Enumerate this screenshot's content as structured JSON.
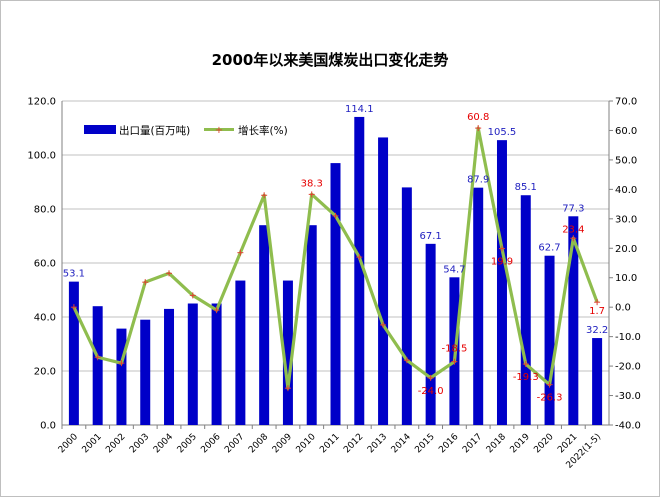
{
  "colors": {
    "bar": "#0000c8",
    "line": "#8fbd4e",
    "marker": "#e04030",
    "value_label": "#1f1fbf",
    "growth_label": "#e60000",
    "grid": "#c0c0c0"
  },
  "chart_data": {
    "type": "bar+line",
    "title": "2000年以来美国煤炭出口变化走势",
    "categories": [
      "2000",
      "2001",
      "2002",
      "2003",
      "2004",
      "2005",
      "2006",
      "2007",
      "2008",
      "2009",
      "2010",
      "2011",
      "2012",
      "2013",
      "2014",
      "2015",
      "2016",
      "2017",
      "2018",
      "2019",
      "2020",
      "2021",
      "2022(1-5)"
    ],
    "series": [
      {
        "name": "出口量(百万吨)",
        "type": "bar",
        "axis": "left",
        "values": [
          53.1,
          44.0,
          35.7,
          39.0,
          43.0,
          45.0,
          45.0,
          53.5,
          74.0,
          53.5,
          74.0,
          97.0,
          114.1,
          106.5,
          88.0,
          67.1,
          54.7,
          87.9,
          105.5,
          85.1,
          62.7,
          77.3,
          32.2
        ]
      },
      {
        "name": "增长率(%)",
        "type": "line",
        "axis": "right",
        "values": [
          0.0,
          -17.0,
          -19.0,
          8.5,
          11.5,
          4.0,
          -1.0,
          18.5,
          38.0,
          -27.5,
          38.3,
          31.0,
          17.0,
          -6.0,
          -18.0,
          -24.0,
          -18.5,
          60.8,
          19.9,
          -19.3,
          -26.3,
          23.4,
          1.7
        ]
      }
    ],
    "value_labels": [
      {
        "index": 0,
        "text": "53.1"
      },
      {
        "index": 12,
        "text": "114.1"
      },
      {
        "index": 15,
        "text": "67.1"
      },
      {
        "index": 16,
        "text": "54.7"
      },
      {
        "index": 17,
        "text": "87.9"
      },
      {
        "index": 18,
        "text": "105.5"
      },
      {
        "index": 19,
        "text": "85.1"
      },
      {
        "index": 20,
        "text": "62.7"
      },
      {
        "index": 21,
        "text": "77.3"
      },
      {
        "index": 22,
        "text": "32.2"
      }
    ],
    "growth_labels": [
      {
        "index": 10,
        "text": "38.3"
      },
      {
        "index": 15,
        "text": "-24.0"
      },
      {
        "index": 16,
        "text": "-18.5"
      },
      {
        "index": 17,
        "text": "60.8"
      },
      {
        "index": 18,
        "text": "19.9"
      },
      {
        "index": 19,
        "text": "-19.3"
      },
      {
        "index": 20,
        "text": "-26.3"
      },
      {
        "index": 21,
        "text": "23.4"
      },
      {
        "index": 22,
        "text": "1.7"
      }
    ],
    "ylim_left": [
      0,
      120
    ],
    "yticks_left": [
      "0.0",
      "20.0",
      "40.0",
      "60.0",
      "80.0",
      "100.0",
      "120.0"
    ],
    "ylim_right": [
      -40,
      70
    ],
    "yticks_right": [
      "-40.0",
      "-30.0",
      "-20.0",
      "-10.0",
      "0.0",
      "10.0",
      "20.0",
      "30.0",
      "40.0",
      "50.0",
      "60.0",
      "70.0"
    ],
    "grid": true,
    "legend": "top-left"
  }
}
